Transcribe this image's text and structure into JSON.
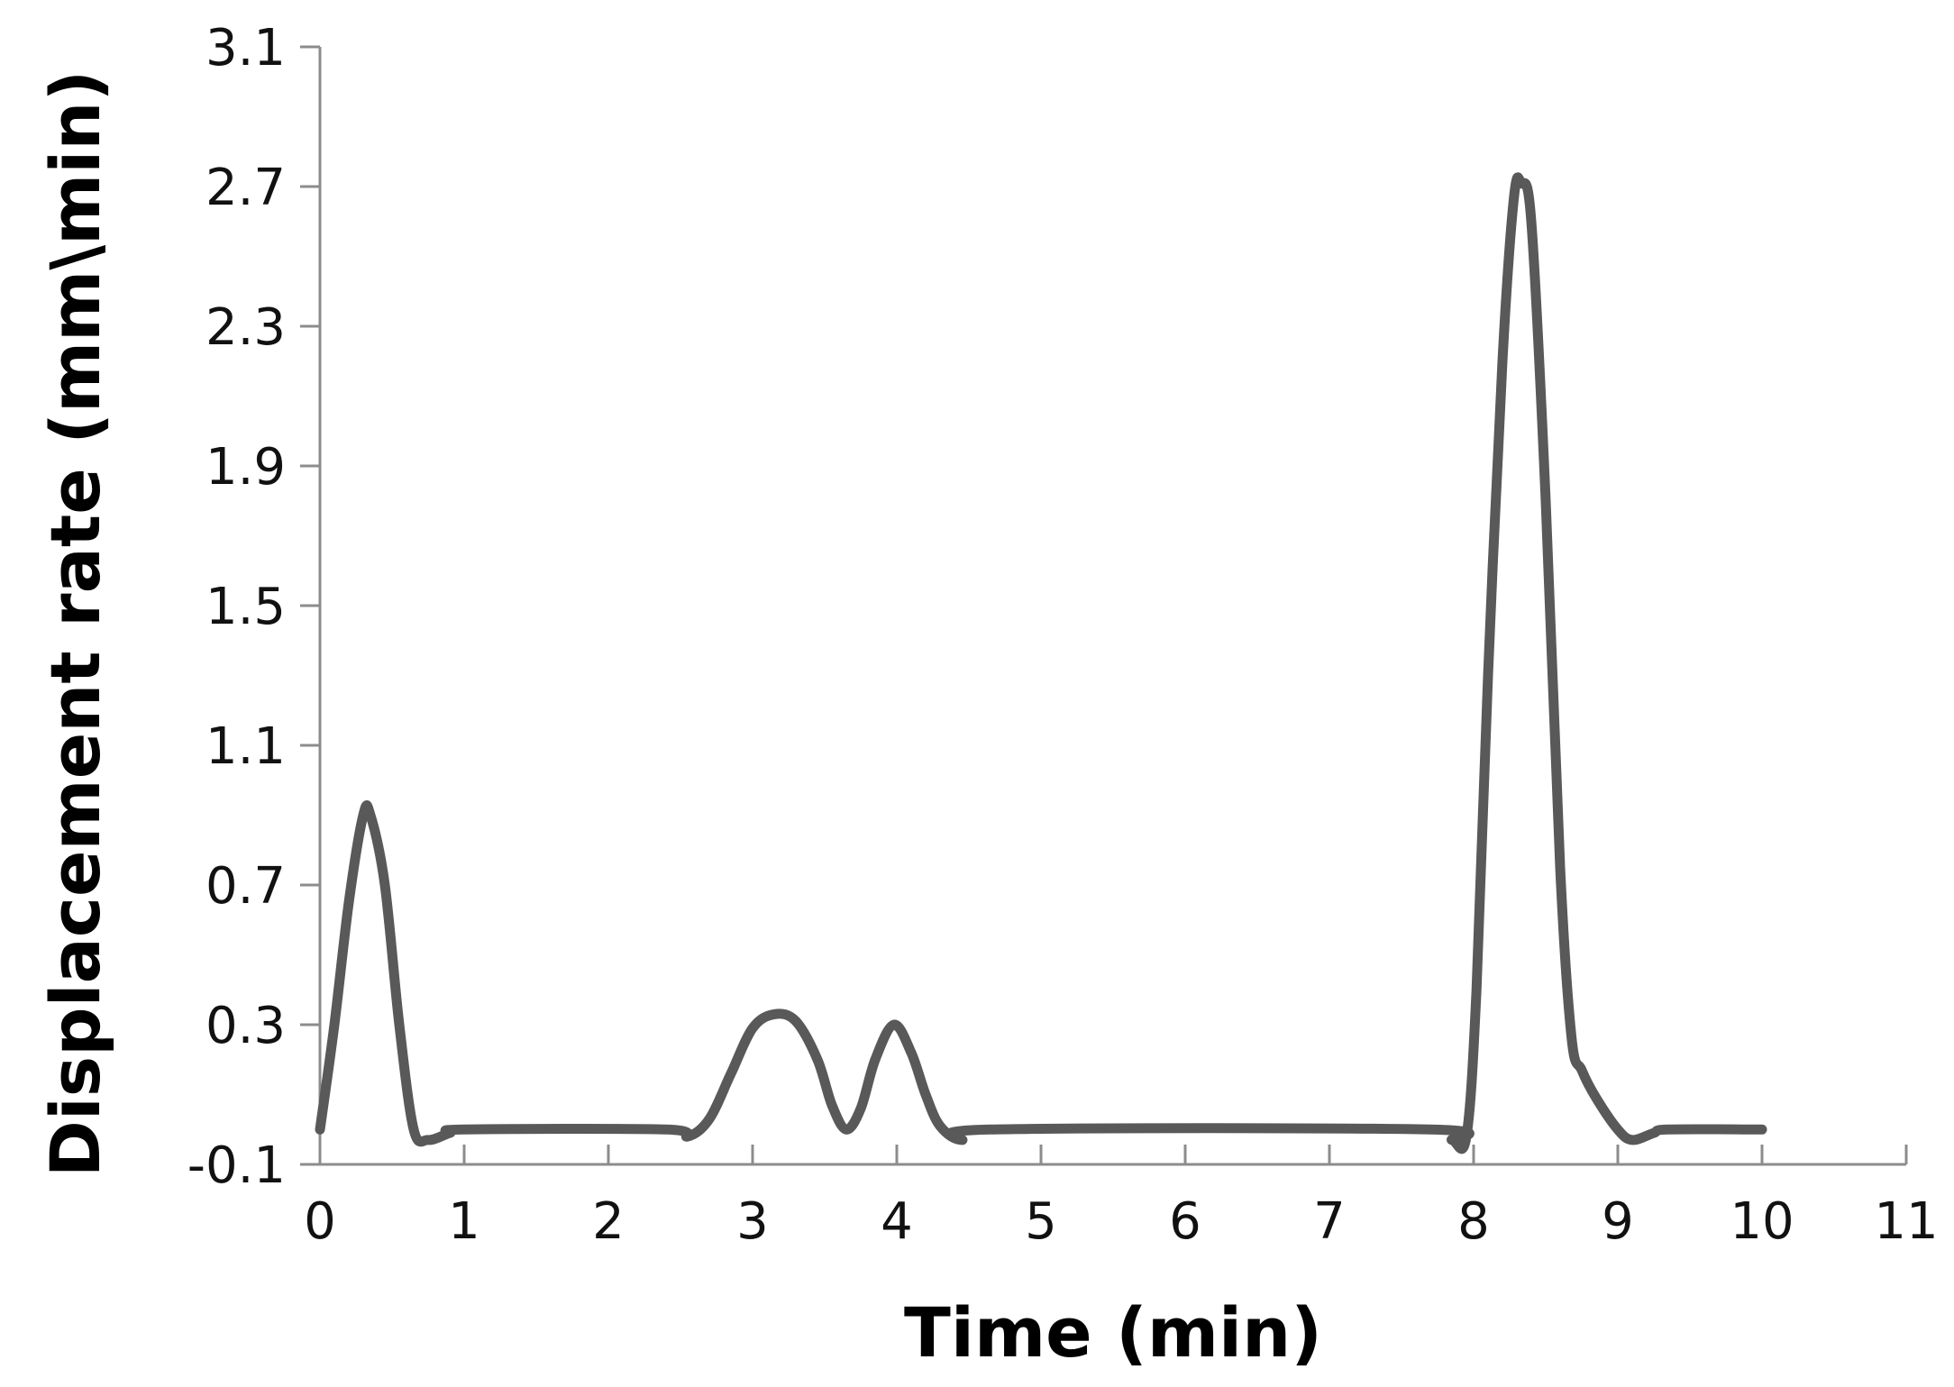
{
  "chart_data": {
    "type": "line",
    "title": "",
    "xlabel": "Time (min)",
    "ylabel": "Displacement rate (mm\\min)",
    "xlim": [
      0,
      11
    ],
    "ylim": [
      -0.1,
      3.1
    ],
    "x_ticks": [
      "0",
      "1",
      "2",
      "3",
      "4",
      "5",
      "6",
      "7",
      "8",
      "9",
      "10",
      "11"
    ],
    "y_ticks": [
      "-0.1",
      "0.3",
      "0.7",
      "1.1",
      "1.5",
      "1.9",
      "2.3",
      "2.7",
      "3.1"
    ],
    "grid": false,
    "legend": "none",
    "line_color": "#595959",
    "series": [
      {
        "points": [
          [
            0.0,
            0.0
          ],
          [
            0.1,
            0.3
          ],
          [
            0.2,
            0.65
          ],
          [
            0.3,
            0.9
          ],
          [
            0.35,
            0.9
          ],
          [
            0.45,
            0.7
          ],
          [
            0.55,
            0.3
          ],
          [
            0.65,
            0.0
          ],
          [
            0.75,
            -0.03
          ],
          [
            0.9,
            -0.01
          ],
          [
            1.0,
            0.0
          ],
          [
            2.4,
            0.0
          ],
          [
            2.55,
            -0.02
          ],
          [
            2.7,
            0.03
          ],
          [
            2.85,
            0.16
          ],
          [
            3.0,
            0.29
          ],
          [
            3.15,
            0.33
          ],
          [
            3.3,
            0.31
          ],
          [
            3.45,
            0.2
          ],
          [
            3.55,
            0.07
          ],
          [
            3.65,
            0.0
          ],
          [
            3.75,
            0.06
          ],
          [
            3.85,
            0.2
          ],
          [
            3.98,
            0.3
          ],
          [
            4.1,
            0.22
          ],
          [
            4.2,
            0.1
          ],
          [
            4.3,
            0.01
          ],
          [
            4.45,
            -0.03
          ],
          [
            4.65,
            0.0
          ],
          [
            7.7,
            0.0
          ],
          [
            7.85,
            -0.03
          ],
          [
            7.95,
            -0.02
          ],
          [
            8.02,
            0.4
          ],
          [
            8.1,
            1.3
          ],
          [
            8.2,
            2.2
          ],
          [
            8.28,
            2.67
          ],
          [
            8.33,
            2.71
          ],
          [
            8.4,
            2.6
          ],
          [
            8.5,
            1.8
          ],
          [
            8.6,
            0.75
          ],
          [
            8.68,
            0.26
          ],
          [
            8.75,
            0.17
          ],
          [
            8.85,
            0.09
          ],
          [
            9.0,
            0.0
          ],
          [
            9.1,
            -0.03
          ],
          [
            9.25,
            -0.01
          ],
          [
            9.35,
            0.0
          ],
          [
            10.0,
            0.0
          ]
        ]
      }
    ]
  }
}
